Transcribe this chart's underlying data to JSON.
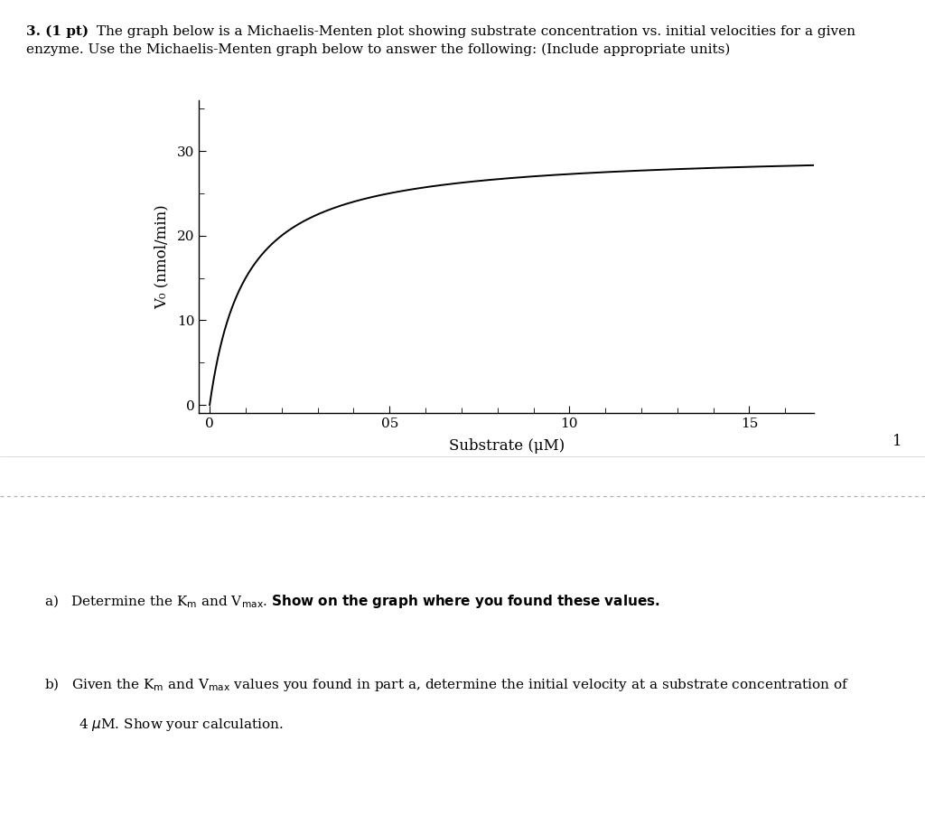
{
  "title_bold": "3. (1 pt)",
  "title_rest_line1": " The graph below is a Michaelis-Menten plot showing substrate concentration vs. initial velocities for a given",
  "title_line2": "enzyme. Use the Michaelis-Menten graph below to answer the following: (Include appropriate units)",
  "xlabel": "Substrate (μM)",
  "ylabel": "V₀ (nmol/min)",
  "x_ticks": [
    0,
    5,
    10,
    15
  ],
  "x_tick_labels": [
    "0",
    "05",
    "10",
    "15"
  ],
  "y_ticks": [
    0,
    10,
    20,
    30
  ],
  "y_tick_labels": [
    "0",
    "10",
    "20",
    "30"
  ],
  "xlim": [
    -0.3,
    16.8
  ],
  "ylim": [
    -1.0,
    36
  ],
  "Vmax": 30,
  "Km": 1.0,
  "curve_color": "#000000",
  "background_color": "#ffffff",
  "page_number": "1",
  "gray_band_color": "#ebebeb",
  "dotted_line_color": "#b0b0b0"
}
